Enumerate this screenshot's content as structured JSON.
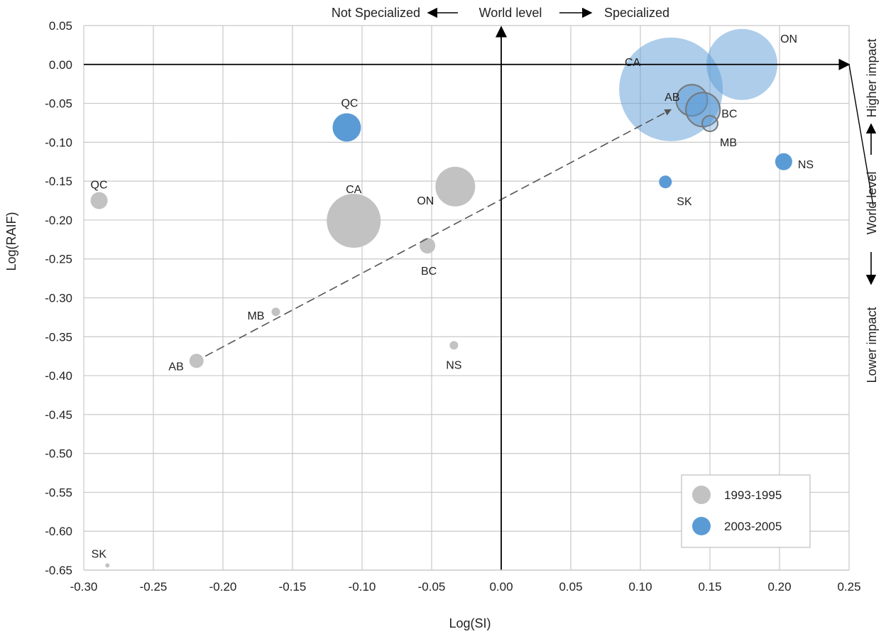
{
  "chart_data": {
    "type": "scatter",
    "bubble": true,
    "xlabel": "Log(SI)",
    "ylabel": "Log(RAIF)",
    "xlim": [
      -0.3,
      0.25
    ],
    "ylim": [
      -0.65,
      0.05
    ],
    "x_ticks": [
      "-0.30",
      "-0.25",
      "-0.20",
      "-0.15",
      "-0.10",
      "-0.05",
      "0.00",
      "0.05",
      "0.10",
      "0.15",
      "0.20",
      "0.25"
    ],
    "y_ticks": [
      "0.05",
      "0.00",
      "-0.05",
      "-0.10",
      "-0.15",
      "-0.20",
      "-0.25",
      "-0.30",
      "-0.35",
      "-0.40",
      "-0.45",
      "-0.50",
      "-0.55",
      "-0.60",
      "-0.65"
    ],
    "grid": true,
    "legend_position": "bottom-right",
    "top_annotation": {
      "left": "Not Specialized",
      "center": "World level",
      "right": "Specialized"
    },
    "right_annotation": {
      "top": "Higher impact",
      "center": "World level",
      "bottom": "Lower impact"
    },
    "series": [
      {
        "name": "1993-1995",
        "color": "#c2c2c2",
        "points": [
          {
            "label": "QC",
            "x": -0.289,
            "y": -0.175,
            "size": 12
          },
          {
            "label": "CA",
            "x": -0.106,
            "y": -0.201,
            "size": 38
          },
          {
            "label": "ON",
            "x": -0.033,
            "y": -0.157,
            "size": 28
          },
          {
            "label": "BC",
            "x": -0.053,
            "y": -0.233,
            "size": 11
          },
          {
            "label": "MB",
            "x": -0.162,
            "y": -0.318,
            "size": 6
          },
          {
            "label": "NS",
            "x": -0.034,
            "y": -0.361,
            "size": 6
          },
          {
            "label": "AB",
            "x": -0.219,
            "y": -0.381,
            "size": 10
          },
          {
            "label": "SK",
            "x": -0.283,
            "y": -0.644,
            "size": 3
          }
        ]
      },
      {
        "name": "2003-2005",
        "color": "#5b9bd5",
        "points": [
          {
            "label": "CA",
            "x": 0.122,
            "y": -0.032,
            "size": 73
          },
          {
            "label": "ON",
            "x": 0.173,
            "y": 0.0,
            "size": 50
          },
          {
            "label": "QC",
            "x": -0.111,
            "y": -0.081,
            "size": 20
          },
          {
            "label": "AB",
            "x": 0.137,
            "y": -0.046,
            "size": 22
          },
          {
            "label": "BC",
            "x": 0.145,
            "y": -0.058,
            "size": 24
          },
          {
            "label": "MB",
            "x": 0.15,
            "y": -0.076,
            "size": 11
          },
          {
            "label": "NS",
            "x": 0.203,
            "y": -0.125,
            "size": 12
          },
          {
            "label": "SK",
            "x": 0.118,
            "y": -0.151,
            "size": 9
          }
        ]
      }
    ],
    "trend_arrow": {
      "from": [
        -0.219,
        -0.381
      ],
      "to": [
        0.122,
        -0.058
      ]
    }
  }
}
